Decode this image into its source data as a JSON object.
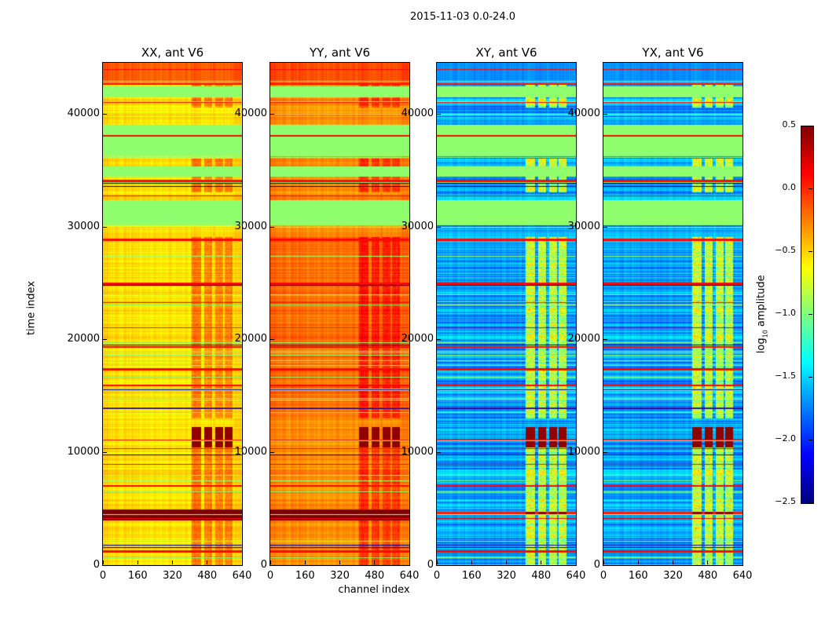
{
  "chart_data": {
    "type": "heatmap",
    "title": "2015-11-03 0.0-24.0",
    "xlabel": "channel index",
    "ylabel": "time index",
    "xlim": [
      0,
      640
    ],
    "ylim": [
      0,
      44500
    ],
    "xticks": [
      "0",
      "160",
      "320",
      "480",
      "640"
    ],
    "yticks": [
      "0",
      "10000",
      "20000",
      "30000",
      "40000"
    ],
    "colormap": "jet",
    "colorbar": {
      "label_main": "log",
      "label_sub": "10",
      "label_rest": " amplitude",
      "range": [
        -2.5,
        0.5
      ],
      "ticks": [
        "0.5",
        "0.0",
        "−0.5",
        "−1.0",
        "−1.5",
        "−2.0",
        "−2.5"
      ]
    },
    "flagged_bands": [
      [
        30100,
        32300
      ],
      [
        34400,
        35300
      ],
      [
        36200,
        37900
      ],
      [
        38100,
        39000
      ],
      [
        41400,
        42400
      ]
    ],
    "flag_value": -0.95,
    "red_lines": [
      1200,
      7000,
      15900,
      17300,
      19300,
      24900,
      28800,
      34000,
      38000,
      42600
    ],
    "active_channels": [
      [
        405,
        450
      ],
      [
        463,
        500
      ],
      [
        514,
        550
      ],
      [
        557,
        594
      ]
    ],
    "active_times": [
      [
        0,
        12200
      ],
      [
        13000,
        29000
      ],
      [
        33000,
        36000
      ],
      [
        40500,
        42500
      ]
    ],
    "strong_times": [
      [
        10400,
        12200
      ],
      [
        3900,
        4900
      ]
    ],
    "panels": [
      {
        "title": "XX, ant V6",
        "base": -0.55,
        "top_value": -0.15,
        "column_boost": 0.35,
        "saturated_band": [
          3900,
          4900
        ]
      },
      {
        "title": "YY, ant V6",
        "base": -0.3,
        "top_value": -0.1,
        "column_boost": 0.3,
        "saturated_band": [
          3900,
          4900
        ]
      },
      {
        "title": "XY, ant V6",
        "base": -1.65,
        "top_value": -1.7,
        "column_boost": 1.0,
        "saturated_band": [
          4500,
          4700
        ]
      },
      {
        "title": "YX, ant V6",
        "base": -1.65,
        "top_value": -1.7,
        "column_boost": 1.0,
        "saturated_band": [
          4500,
          4700
        ]
      }
    ]
  }
}
